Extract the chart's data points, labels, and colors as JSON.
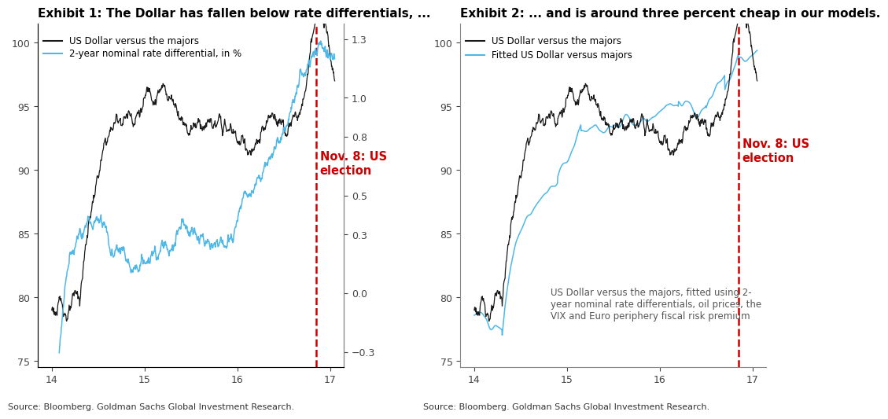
{
  "title1": "Exhibit 1: The Dollar has fallen below rate differentials, ...",
  "title2": "Exhibit 2: ... and is around three percent cheap in our models.",
  "source": "Source: Bloomberg. Goldman Sachs Global Investment Research.",
  "legend1_line1": "US Dollar versus the majors",
  "legend1_line2": "2-year nominal rate differential, in %",
  "legend2_line1": "US Dollar versus the majors",
  "legend2_line2": "Fitted US Dollar versus majors",
  "annotation1": "Nov. 8: US\nelection",
  "annotation2": "Nov. 8: US\nelection",
  "annotation2b": "US Dollar versus the majors, fitted using 2-\nyear nominal rate differentials, oil prices, the\nVIX and Euro periphery fiscal risk premium",
  "vline_x": 16.85,
  "xlim": [
    13.85,
    17.15
  ],
  "ylim_left": [
    74.5,
    101.5
  ],
  "ylim_right": [
    -0.38,
    1.38
  ],
  "xticks": [
    14,
    15,
    16,
    17
  ],
  "yticks_left": [
    75,
    80,
    85,
    90,
    95,
    100
  ],
  "yticks_right1": [
    -0.3,
    0.0,
    0.3,
    0.5,
    0.8,
    1.0,
    1.3
  ],
  "color_black": "#1a1a1a",
  "color_blue": "#4db8e8",
  "color_red": "#cc0000",
  "title_fontsize": 11,
  "tick_fontsize": 9,
  "source_fontsize": 8
}
